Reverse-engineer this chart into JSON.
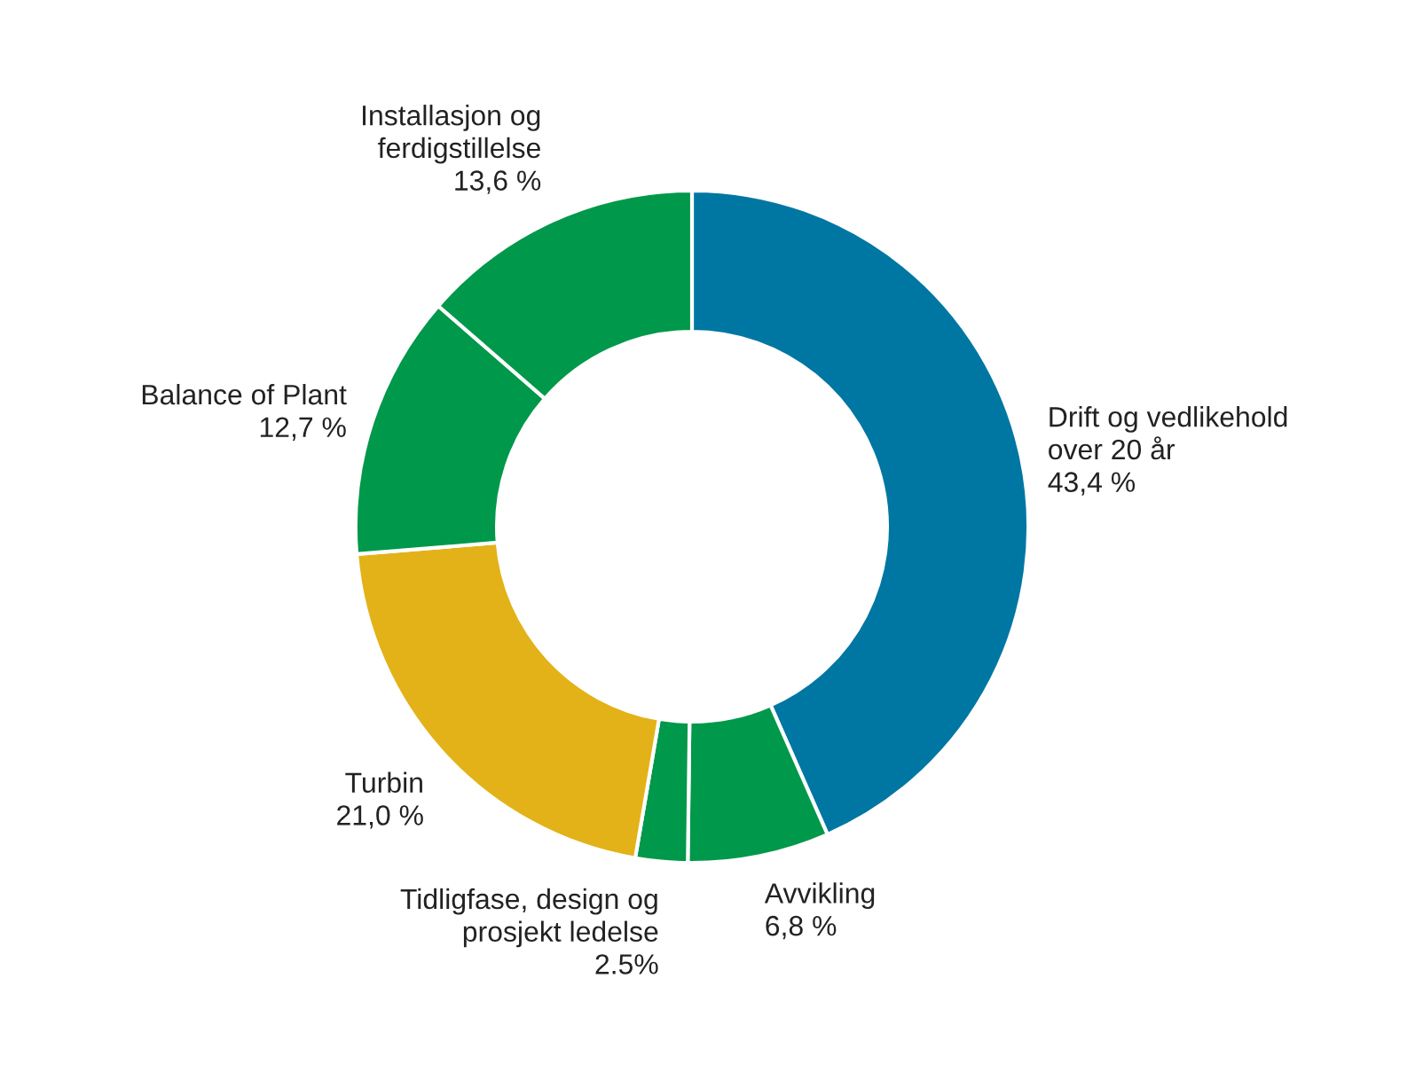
{
  "chart_data": {
    "type": "donut",
    "categories": [
      "Drift og vedlikehold\nover 20 år",
      "Avvikling",
      "Tidligfase, design og\nprosjekt ledelse",
      "Turbin",
      "Balance of Plant",
      "Installasjon og\nferdigstillelse"
    ],
    "values": [
      43.4,
      6.8,
      2.5,
      21.0,
      12.7,
      13.6
    ],
    "value_labels": [
      "43,4 %",
      "6,8 %",
      "2.5%",
      "21,0 %",
      "12,7 %",
      "13,6 %"
    ],
    "colors": [
      "#0077a3",
      "#00984a",
      "#00984a",
      "#e3b218",
      "#00984a",
      "#00984a"
    ],
    "legend": false
  }
}
